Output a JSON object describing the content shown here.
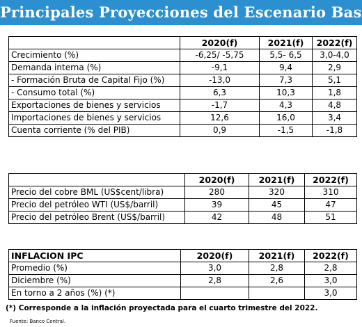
{
  "title": "Principales Proyecciones del Escenario Base",
  "table1": {
    "headers": [
      "",
      "2020(f)",
      "2021(f)",
      "2022(f)"
    ],
    "rows": [
      {
        "label": "Crecimiento (%)",
        "v": [
          "-6,25/ -5,75",
          "5,5- 6,5",
          "3,0-4,0"
        ]
      },
      {
        "label": "Demanda interna (%)",
        "v": [
          "-9,1",
          "9,4",
          "2,9"
        ]
      },
      {
        "label": "- Formación Bruta de Capital Fijo (%)",
        "v": [
          "-13,0",
          "7,3",
          "5,1"
        ]
      },
      {
        "label": "- Consumo total (%)",
        "v": [
          "6,3",
          "10,3",
          "1,8"
        ]
      },
      {
        "label": "Exportaciones de bienes y servicios",
        "v": [
          "-1,7",
          "4,3",
          "4,8"
        ]
      },
      {
        "label": "Importaciones de bienes y servicios",
        "v": [
          "12,6",
          "16,0",
          "3,4"
        ]
      },
      {
        "label": "Cuenta corriente (% del PIB)",
        "v": [
          "0,9",
          "-1,5",
          "-1,8"
        ]
      }
    ]
  },
  "table2": {
    "headers": [
      "",
      "2020(f)",
      "2021(f)",
      "2022(f)"
    ],
    "rows": [
      {
        "label": "Precio del cobre BML (US$cent/libra)",
        "v": [
          "280",
          "320",
          "310"
        ]
      },
      {
        "label": "Precio del petróleo WTI (US$/barril)",
        "v": [
          "39",
          "45",
          "47"
        ]
      },
      {
        "label": "Precio del petróleo Brent (US$/barril)",
        "v": [
          "42",
          "48",
          "51"
        ]
      }
    ]
  },
  "table3": {
    "headers": [
      "INFLACION IPC",
      "2020(f)",
      "2021(f)",
      "2022(f)"
    ],
    "rows": [
      {
        "label": "Promedio (%)",
        "v": [
          "3,0",
          "2,8",
          "2,8"
        ]
      },
      {
        "label": "Diciembre (%)",
        "v": [
          "2,8",
          "2,6",
          "3,0"
        ]
      },
      {
        "label": "En torno a 2 años (%) (*)",
        "v": [
          "",
          "",
          "3,0"
        ]
      }
    ]
  },
  "footnote": "(*) Corresponde a la inflación proyectada para el cuarto trimestre del 2022.",
  "source": "Fuente: Banco Central."
}
